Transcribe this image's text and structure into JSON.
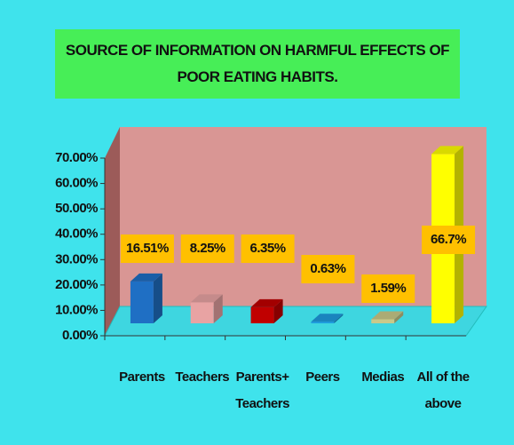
{
  "chart_data": {
    "type": "bar3d",
    "title": "SOURCE OF INFORMATION ON HARMFUL EFFECTS OF POOR EATING HABITS.",
    "categories": [
      "Parents",
      "Teachers",
      "Parents+ Teachers",
      "Peers",
      "Medias",
      "All of the above"
    ],
    "values": [
      16.51,
      8.25,
      6.35,
      0.63,
      1.59,
      66.7
    ],
    "value_labels": [
      "16.51%",
      "8.25%",
      "6.35%",
      "0.63%",
      "1.59%",
      "66.7%"
    ],
    "colors": [
      "#1f6fc4",
      "#e8a3a3",
      "#c00000",
      "#1e9be0",
      "#c9c98a",
      "#ffff00"
    ],
    "ylim": [
      0,
      70
    ],
    "yticks": [
      {
        "value": 0,
        "label": "0.00%"
      },
      {
        "value": 10,
        "label": "10.00%"
      },
      {
        "value": 20,
        "label": "20.00%"
      },
      {
        "value": 30,
        "label": "30.00%"
      },
      {
        "value": 40,
        "label": "40.00%"
      },
      {
        "value": 50,
        "label": "50.00%"
      },
      {
        "value": 60,
        "label": "60.00%"
      },
      {
        "value": 70,
        "label": "70.00%"
      }
    ],
    "grid": false
  }
}
